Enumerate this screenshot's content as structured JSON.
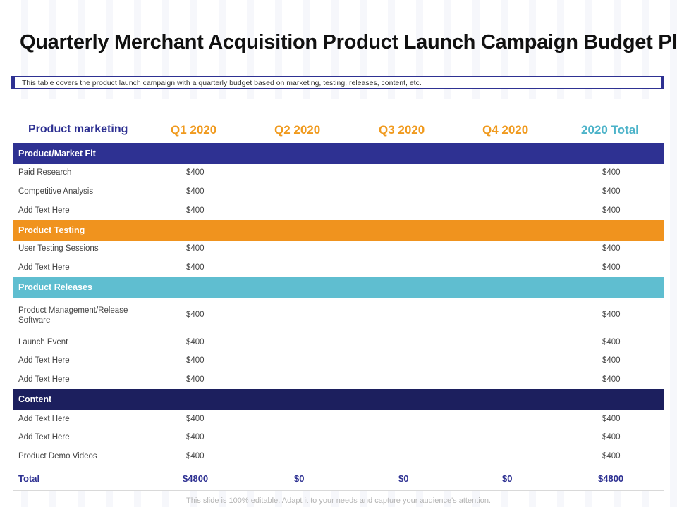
{
  "title": "Quarterly Merchant Acquisition Product Launch Campaign Budget Plan",
  "subtitle": "This table covers the product launch campaign with a quarterly budget based on marketing, testing, releases, content, etc.",
  "colors": {
    "navy": "#2e3192",
    "orange": "#f0931e",
    "teal": "#5fbed0",
    "dark_navy": "#1c1f5e",
    "quarter": "#f09a1e",
    "total_header": "#4cb3c9"
  },
  "table": {
    "header": {
      "label": "Product marketing",
      "q1": "Q1 2020",
      "q2": "Q2 2020",
      "q3": "Q3 2020",
      "q4": "Q4 2020",
      "total": "2020 Total"
    },
    "sections": [
      {
        "name": "Product/Market Fit",
        "color": "#2e3192",
        "rows": [
          {
            "label": "Paid Research",
            "q1": "$400",
            "total": "$400"
          },
          {
            "label": "Competitive Analysis",
            "q1": "$400",
            "total": "$400"
          },
          {
            "label": "Add Text Here",
            "q1": "$400",
            "total": "$400"
          }
        ]
      },
      {
        "name": "Product Testing",
        "color": "#f0931e",
        "rows": [
          {
            "label": "User Testing Sessions",
            "q1": "$400",
            "total": "$400"
          },
          {
            "label": "Add Text Here",
            "q1": "$400",
            "total": "$400"
          }
        ]
      },
      {
        "name": "Product Releases",
        "color": "#5fbed0",
        "rows": [
          {
            "label": "Product Management/Release Software",
            "q1": "$400",
            "total": "$400"
          },
          {
            "label": "Launch Event",
            "q1": "$400",
            "total": "$400"
          },
          {
            "label": "Add Text Here",
            "q1": "$400",
            "total": "$400"
          },
          {
            "label": "Add Text Here",
            "q1": "$400",
            "total": "$400"
          }
        ]
      },
      {
        "name": "Content",
        "color": "#1c1f5e",
        "rows": [
          {
            "label": "Add Text Here",
            "q1": "$400",
            "total": "$400"
          },
          {
            "label": "Add Text Here",
            "q1": "$400",
            "total": "$400"
          },
          {
            "label": "Product Demo Videos",
            "q1": "$400",
            "total": "$400"
          }
        ]
      }
    ],
    "total_row": {
      "label": "Total",
      "q1": "$4800",
      "q2": "$0",
      "q3": "$0",
      "q4": "$0",
      "total": "$4800"
    }
  },
  "footer": "This slide is 100% editable. Adapt it to your needs and capture your audience's attention."
}
